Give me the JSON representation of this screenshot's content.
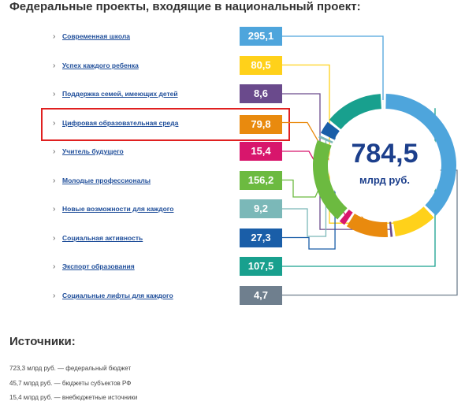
{
  "heading": "Федеральные проекты, входящие в национальный проект:",
  "projects": [
    {
      "label": "Современная школа",
      "value": "295,1",
      "num": 295.1,
      "color": "#4ea5dc"
    },
    {
      "label": "Успех каждого ребенка",
      "value": "80,5",
      "num": 80.5,
      "color": "#ffd11a"
    },
    {
      "label": "Поддержка семей, имеющих детей",
      "value": "8,6",
      "num": 8.6,
      "color": "#6a4a8c"
    },
    {
      "label": "Цифровая образовательная среда",
      "value": "79,8",
      "num": 79.8,
      "color": "#e98a0e"
    },
    {
      "label": "Учитель будущего",
      "value": "15,4",
      "num": 15.4,
      "color": "#d8166c"
    },
    {
      "label": "Молодые профессионалы",
      "value": "156,2",
      "num": 156.2,
      "color": "#6cba40"
    },
    {
      "label": "Новые возможности для каждого",
      "value": "9,2",
      "num": 9.2,
      "color": "#7bb8b8"
    },
    {
      "label": "Социальная активность",
      "value": "27,3",
      "num": 27.3,
      "color": "#1a5ea8"
    },
    {
      "label": "Экспорт образования",
      "value": "107,5",
      "num": 107.5,
      "color": "#18a08e"
    },
    {
      "label": "Социальные лифты для каждого",
      "value": "4,7",
      "num": 4.7,
      "color": "#6f7f8e"
    }
  ],
  "total": {
    "value": "784,5",
    "unit": "млрд руб."
  },
  "sources": {
    "title": "Источники:",
    "items": [
      "723,3 млрд руб. — федеральный бюджет",
      "45,7 млрд руб. — бюджеты субъектов РФ",
      "15,4 млрд руб. — внебюджетные источники"
    ]
  },
  "highlight": "Цифровая образовательная среда"
}
